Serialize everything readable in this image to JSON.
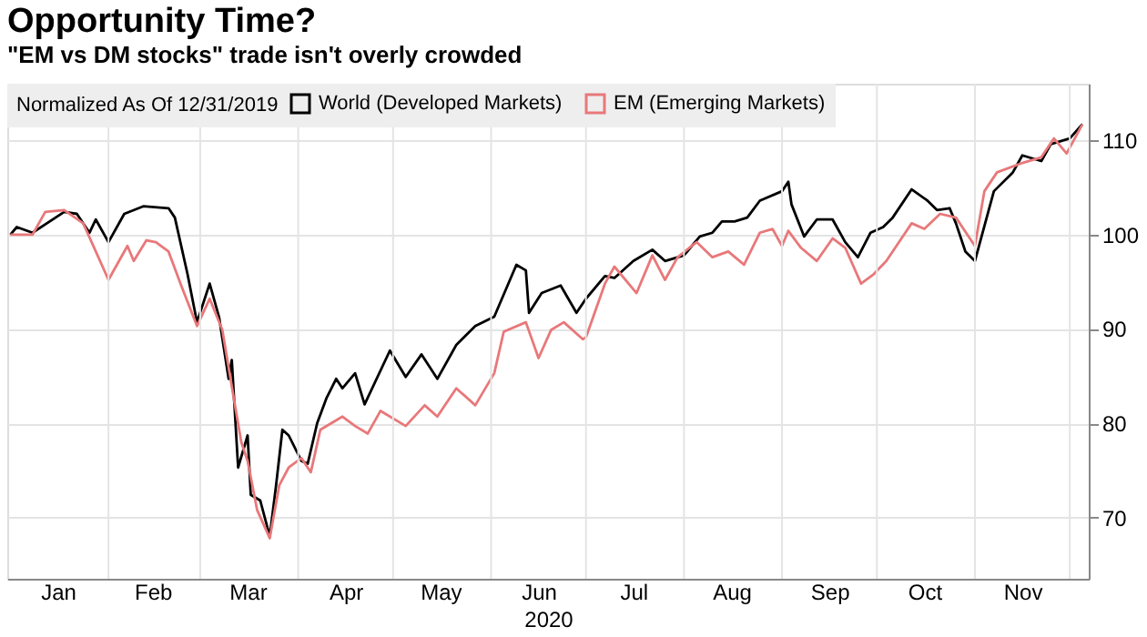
{
  "chart_data": {
    "type": "line",
    "title": "Opportunity Time?",
    "subtitle": "\"EM vs DM stocks\" trade isn't overly crowded",
    "xlabel": "2020",
    "legend_title": "Normalized As Of 12/31/2019",
    "legend": "top left",
    "grid": true,
    "line_style": "solid",
    "marker": "none",
    "xlim": [
      "2019-12-31",
      "2020-12-07"
    ],
    "xticks": [
      {
        "value": "2020-01-16",
        "label": "Jan"
      },
      {
        "value": "2020-02-15",
        "label": "Feb"
      },
      {
        "value": "2020-03-16",
        "label": "Mar"
      },
      {
        "value": "2020-04-16",
        "label": "Apr"
      },
      {
        "value": "2020-05-16",
        "label": "May"
      },
      {
        "value": "2020-06-16",
        "label": "Jun"
      },
      {
        "value": "2020-07-16",
        "label": "Jul"
      },
      {
        "value": "2020-08-16",
        "label": "Aug"
      },
      {
        "value": "2020-09-16",
        "label": "Sep"
      },
      {
        "value": "2020-10-16",
        "label": "Oct"
      },
      {
        "value": "2020-11-16",
        "label": "Nov"
      },
      {
        "value": "2020-02-01",
        "label": null
      },
      {
        "value": "2020-03-01",
        "label": null
      },
      {
        "value": "2020-04-01",
        "label": null
      },
      {
        "value": "2020-05-01",
        "label": null
      },
      {
        "value": "2020-06-01",
        "label": null
      },
      {
        "value": "2020-07-01",
        "label": null
      },
      {
        "value": "2020-08-01",
        "label": null
      },
      {
        "value": "2020-09-01",
        "label": null
      },
      {
        "value": "2020-10-01",
        "label": null
      },
      {
        "value": "2020-11-01",
        "label": null
      },
      {
        "value": "2020-12-01",
        "label": null
      }
    ],
    "ylim": [
      63.5,
      116
    ],
    "yticks": [
      70,
      80,
      90,
      100,
      110
    ],
    "series": [
      {
        "name": "World (Developed Markets)",
        "color": "#000000",
        "x": [
          "2020-01-01",
          "2020-01-03",
          "2020-01-08",
          "2020-01-18",
          "2020-01-22",
          "2020-01-26",
          "2020-01-28",
          "2020-02-01",
          "2020-02-06",
          "2020-02-12",
          "2020-02-20",
          "2020-02-22",
          "2020-02-26",
          "2020-02-29",
          "2020-03-04",
          "2020-03-07",
          "2020-03-10",
          "2020-03-11",
          "2020-03-13",
          "2020-03-16",
          "2020-03-17",
          "2020-03-20",
          "2020-03-23",
          "2020-03-25",
          "2020-03-27",
          "2020-03-29",
          "2020-04-02",
          "2020-04-04",
          "2020-04-07",
          "2020-04-10",
          "2020-04-13",
          "2020-04-15",
          "2020-04-19",
          "2020-04-22",
          "2020-04-30",
          "2020-05-05",
          "2020-05-10",
          "2020-05-15",
          "2020-05-21",
          "2020-05-27",
          "2020-06-02",
          "2020-06-09",
          "2020-06-12",
          "2020-06-13",
          "2020-06-17",
          "2020-06-23",
          "2020-06-28",
          "2020-07-01",
          "2020-07-07",
          "2020-07-10",
          "2020-07-16",
          "2020-07-22",
          "2020-07-26",
          "2020-08-01",
          "2020-08-06",
          "2020-08-10",
          "2020-08-13",
          "2020-08-17",
          "2020-08-21",
          "2020-08-25",
          "2020-09-01",
          "2020-09-03",
          "2020-09-04",
          "2020-09-08",
          "2020-09-12",
          "2020-09-17",
          "2020-09-21",
          "2020-09-25",
          "2020-09-29",
          "2020-10-03",
          "2020-10-06",
          "2020-10-12",
          "2020-10-17",
          "2020-10-20",
          "2020-10-24",
          "2020-10-26",
          "2020-10-29",
          "2020-11-01",
          "2020-11-07",
          "2020-11-13",
          "2020-11-16",
          "2020-11-22",
          "2020-11-25",
          "2020-12-01",
          "2020-12-05"
        ],
        "values": [
          100,
          100.8,
          100.2,
          102.4,
          102.2,
          100.2,
          101.6,
          99.2,
          102.2,
          103,
          102.8,
          101.8,
          95.8,
          90.7,
          94.8,
          91.2,
          84.7,
          86.7,
          75.3,
          78.7,
          72.4,
          71.8,
          68,
          73.4,
          79.3,
          78.7,
          76,
          75.7,
          80,
          82.7,
          84.7,
          83.7,
          85.3,
          82,
          87.7,
          84.9,
          87.3,
          84.7,
          88.3,
          90.3,
          91.3,
          96.8,
          96.2,
          91.7,
          93.8,
          94.6,
          91.7,
          93.2,
          95.6,
          95.4,
          97.2,
          98.4,
          97.2,
          97.8,
          99.8,
          100.2,
          101.4,
          101.4,
          101.8,
          103.6,
          104.6,
          105.6,
          103.2,
          99.8,
          101.6,
          101.6,
          99.2,
          97.6,
          100.2,
          100.8,
          101.8,
          104.8,
          103.6,
          102.6,
          102.8,
          101.2,
          98.2,
          97.2,
          104.6,
          106.6,
          108.4,
          107.8,
          109.6,
          110.2,
          111.7
        ]
      },
      {
        "name": "EM (Emerging Markets)",
        "color": "#e8787a",
        "x": [
          "2020-01-01",
          "2020-01-08",
          "2020-01-12",
          "2020-01-18",
          "2020-01-24",
          "2020-01-28",
          "2020-02-01",
          "2020-02-07",
          "2020-02-09",
          "2020-02-13",
          "2020-02-16",
          "2020-02-20",
          "2020-02-24",
          "2020-02-29",
          "2020-03-04",
          "2020-03-08",
          "2020-03-12",
          "2020-03-14",
          "2020-03-16",
          "2020-03-19",
          "2020-03-23",
          "2020-03-26",
          "2020-03-29",
          "2020-04-02",
          "2020-04-05",
          "2020-04-08",
          "2020-04-15",
          "2020-04-19",
          "2020-04-23",
          "2020-04-27",
          "2020-05-05",
          "2020-05-11",
          "2020-05-15",
          "2020-05-21",
          "2020-05-27",
          "2020-06-02",
          "2020-06-05",
          "2020-06-12",
          "2020-06-16",
          "2020-06-20",
          "2020-06-24",
          "2020-06-30",
          "2020-07-01",
          "2020-07-07",
          "2020-07-10",
          "2020-07-17",
          "2020-07-22",
          "2020-07-26",
          "2020-07-30",
          "2020-08-05",
          "2020-08-10",
          "2020-08-15",
          "2020-08-20",
          "2020-08-25",
          "2020-08-29",
          "2020-09-01",
          "2020-09-03",
          "2020-09-07",
          "2020-09-12",
          "2020-09-17",
          "2020-09-21",
          "2020-09-26",
          "2020-09-30",
          "2020-10-04",
          "2020-10-08",
          "2020-10-12",
          "2020-10-16",
          "2020-10-21",
          "2020-10-26",
          "2020-11-01",
          "2020-11-04",
          "2020-11-08",
          "2020-11-16",
          "2020-11-22",
          "2020-11-26",
          "2020-11-30",
          "2020-12-05"
        ],
        "values": [
          100,
          100,
          102.4,
          102.6,
          101.2,
          98.2,
          95.2,
          98.8,
          97.2,
          99.4,
          99.2,
          98.2,
          94.6,
          90.3,
          93.2,
          89.9,
          81.9,
          78,
          76,
          70.8,
          67.8,
          73.4,
          75.3,
          76.3,
          74.8,
          79.3,
          80.7,
          79.7,
          78.9,
          81.3,
          79.7,
          81.9,
          80.7,
          83.7,
          81.9,
          85.3,
          89.7,
          90.7,
          86.9,
          89.9,
          90.7,
          88.9,
          89.1,
          94.8,
          96.6,
          93.8,
          97.8,
          95.2,
          97.6,
          99.2,
          97.6,
          98.2,
          96.8,
          100.2,
          100.6,
          98.8,
          100.4,
          98.6,
          97.2,
          99.6,
          98.6,
          94.8,
          95.8,
          97.2,
          99.2,
          101.2,
          100.6,
          102.2,
          101.8,
          98.8,
          104.6,
          106.6,
          107.6,
          108.2,
          110.2,
          108.6,
          111.7
        ]
      }
    ]
  }
}
